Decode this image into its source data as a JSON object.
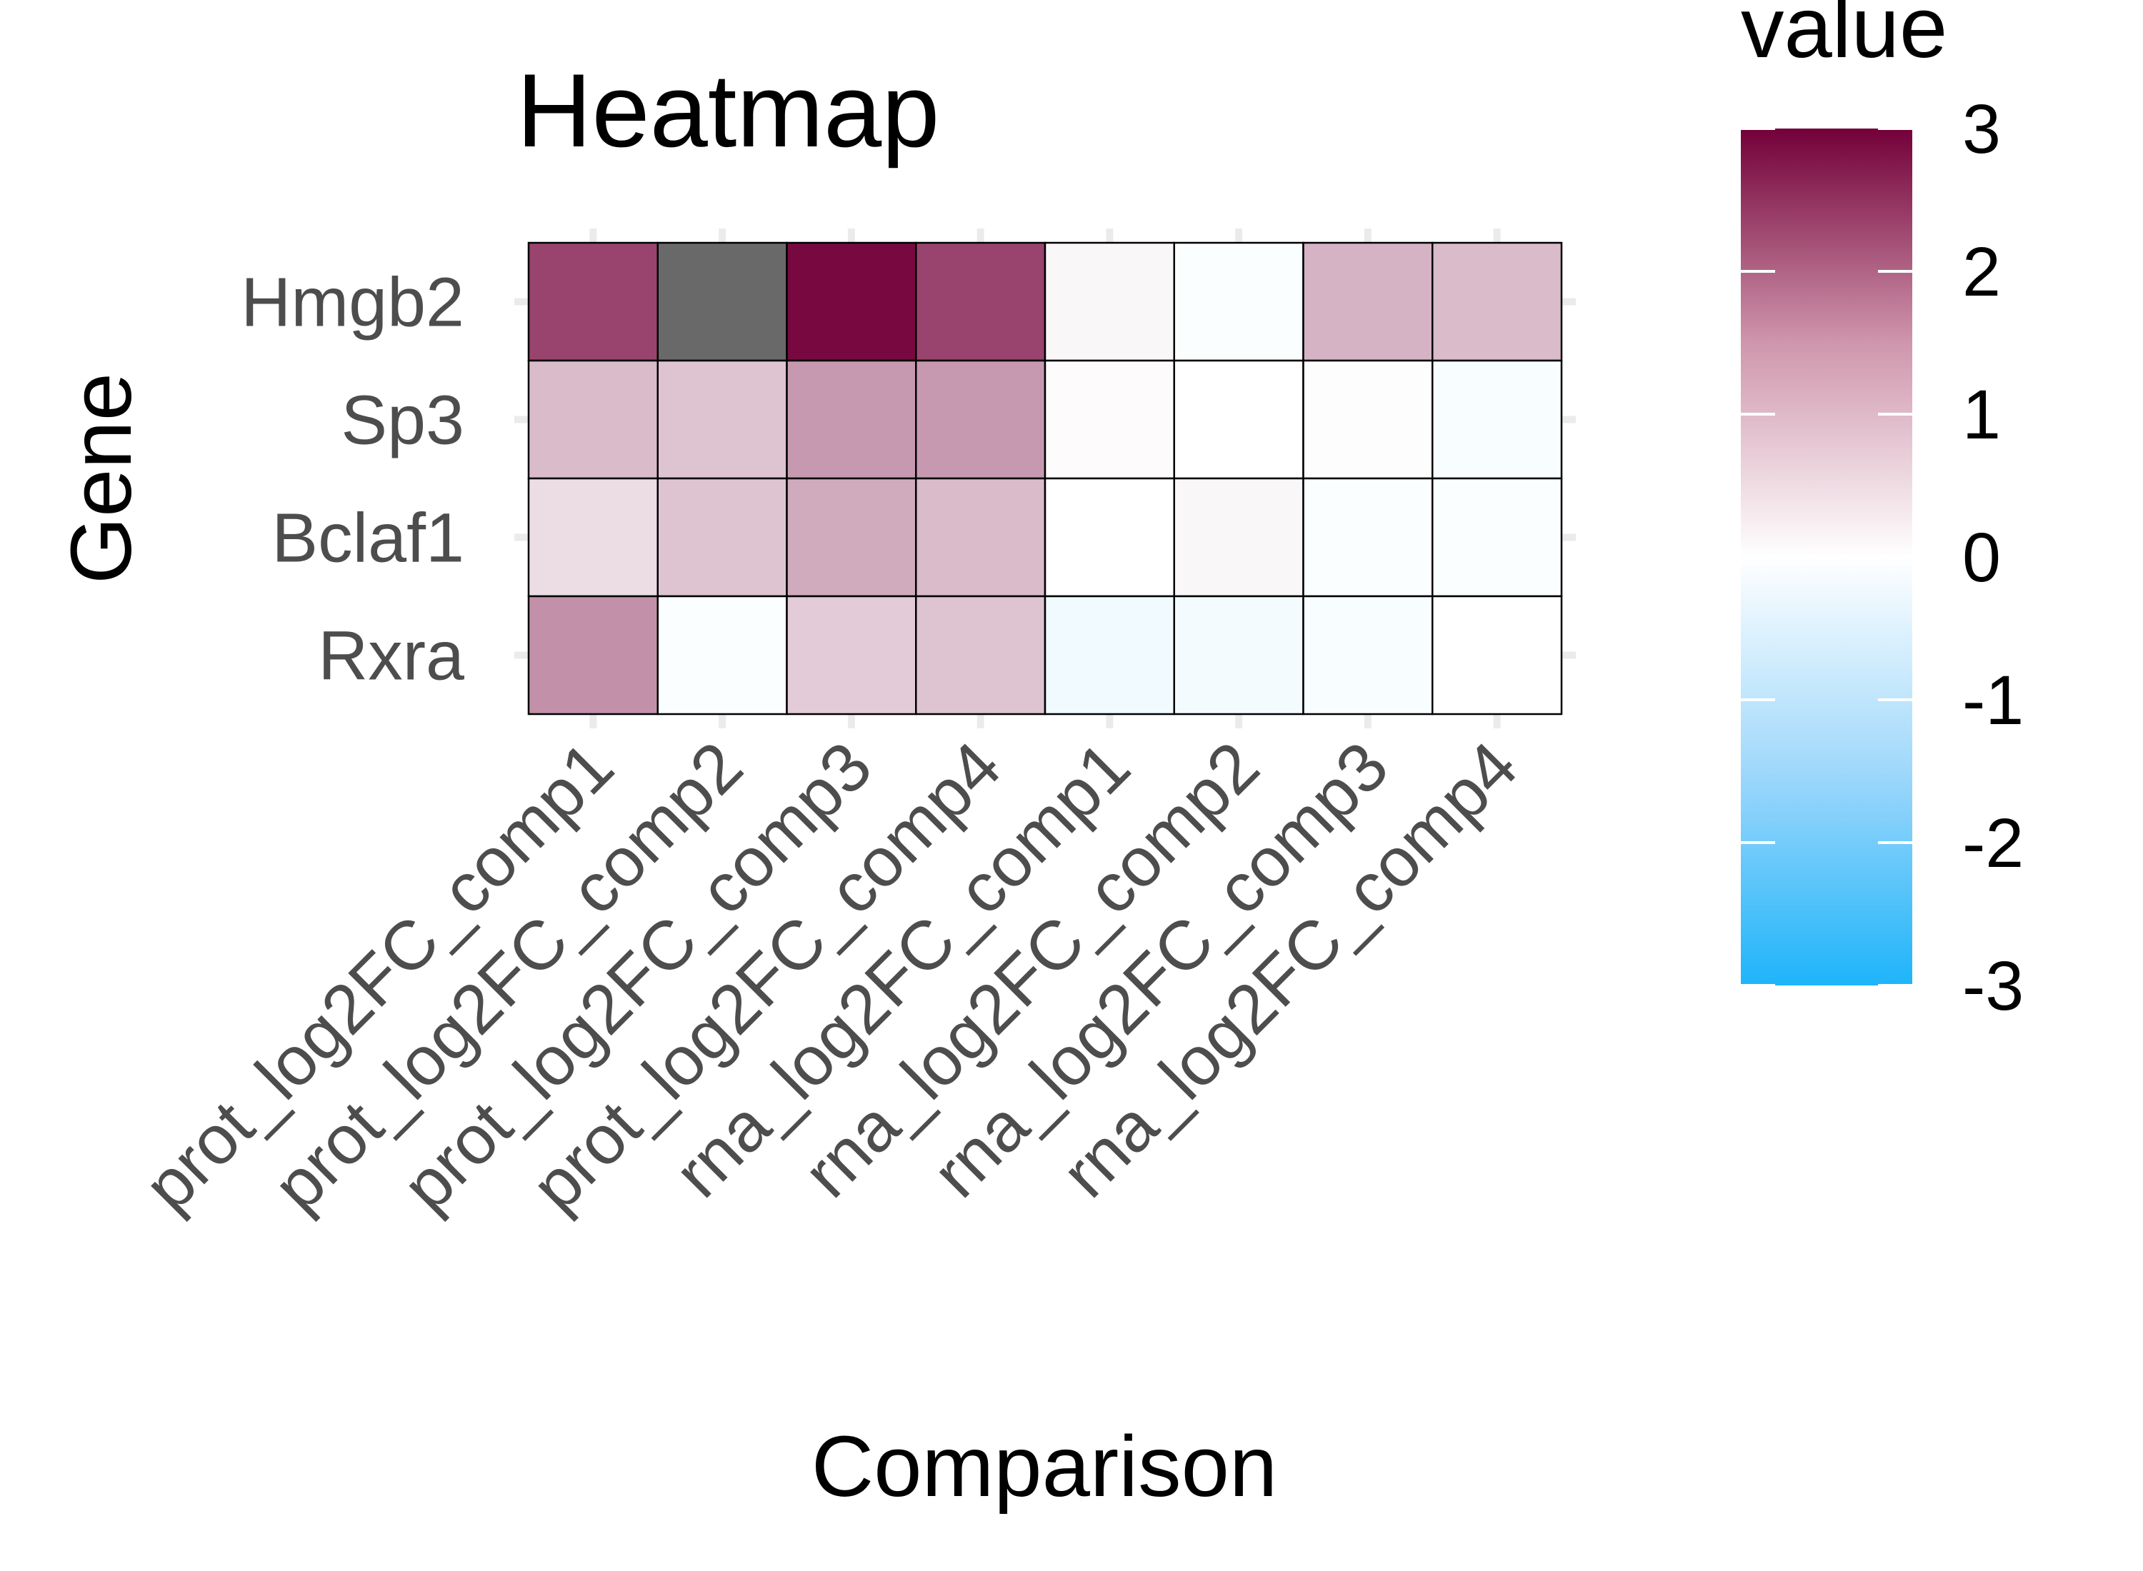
{
  "chart_data": {
    "type": "heatmap",
    "title": "Heatmap",
    "xlabel": "Comparison",
    "ylabel": "Gene",
    "x_categories": [
      "prot_log2FC_comp1",
      "prot_log2FC_comp2",
      "prot_log2FC_comp3",
      "prot_log2FC_comp4",
      "rna_log2FC_comp1",
      "rna_log2FC_comp2",
      "rna_log2FC_comp3",
      "rna_log2FC_comp4"
    ],
    "y_categories": [
      "Hmgb2",
      "Sp3",
      "Bclaf1",
      "Rxra"
    ],
    "values": [
      [
        2.2,
        null,
        2.9,
        2.2,
        0.1,
        -0.05,
        0.9,
        0.8
      ],
      [
        0.8,
        0.7,
        1.2,
        1.2,
        0.05,
        0.0,
        0.02,
        -0.1
      ],
      [
        0.4,
        0.7,
        1.0,
        0.8,
        0.0,
        0.1,
        -0.05,
        -0.05
      ],
      [
        1.3,
        -0.05,
        0.6,
        0.7,
        -0.2,
        -0.15,
        -0.1,
        0.0
      ]
    ],
    "missing_color": "#696969",
    "legend": {
      "title": "value",
      "min": -3,
      "max": 3,
      "ticks": [
        3,
        2,
        1,
        0,
        -1,
        -2,
        -3
      ],
      "colors": {
        "low": "#1eb4fa",
        "mid": "#ffffff",
        "high": "#730039"
      }
    },
    "grid": true
  }
}
